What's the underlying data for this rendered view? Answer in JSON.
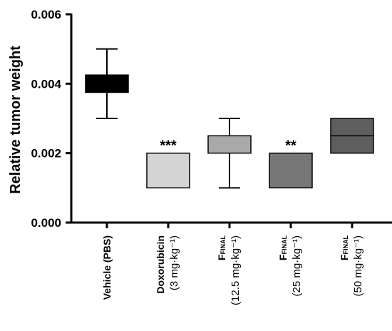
{
  "chart_data": {
    "type": "box",
    "ylabel": "Relative tumor weight",
    "ylim": [
      0,
      0.006
    ],
    "yticks": [
      "0.000",
      "0.002",
      "0.004",
      "0.006"
    ],
    "grid": false,
    "categories": [
      {
        "name": "Vehicle (PBS)",
        "sub": "",
        "dose": ""
      },
      {
        "name": "Doxorubicin",
        "sub": "",
        "dose": "(3 mg·kg⁻¹)"
      },
      {
        "name": "F",
        "sub": "FINAL",
        "dose": "(12.5 mg·kg⁻¹)"
      },
      {
        "name": "F",
        "sub": "FINAL",
        "dose": "(25 mg·kg⁻¹)"
      },
      {
        "name": "F",
        "sub": "FINAL",
        "dose": "(50 mg·kg⁻¹)"
      }
    ],
    "boxes": [
      {
        "min": 0.003,
        "q1": 0.00375,
        "median": 0.004,
        "q3": 0.00425,
        "max": 0.005,
        "color": "#000000",
        "significance": ""
      },
      {
        "min": 0.001,
        "q1": 0.001,
        "median": 0.001,
        "q3": 0.002,
        "max": 0.002,
        "color": "#d4d4d4",
        "significance": "***"
      },
      {
        "min": 0.001,
        "q1": 0.002,
        "median": 0.002,
        "q3": 0.0025,
        "max": 0.003,
        "color": "#a9a9a9",
        "significance": ""
      },
      {
        "min": 0.001,
        "q1": 0.001,
        "median": 0.001,
        "q3": 0.002,
        "max": 0.002,
        "color": "#777777",
        "significance": "**"
      },
      {
        "min": 0.002,
        "q1": 0.002,
        "median": 0.0025,
        "q3": 0.003,
        "max": 0.003,
        "color": "#5e5e5e",
        "significance": ""
      }
    ]
  }
}
